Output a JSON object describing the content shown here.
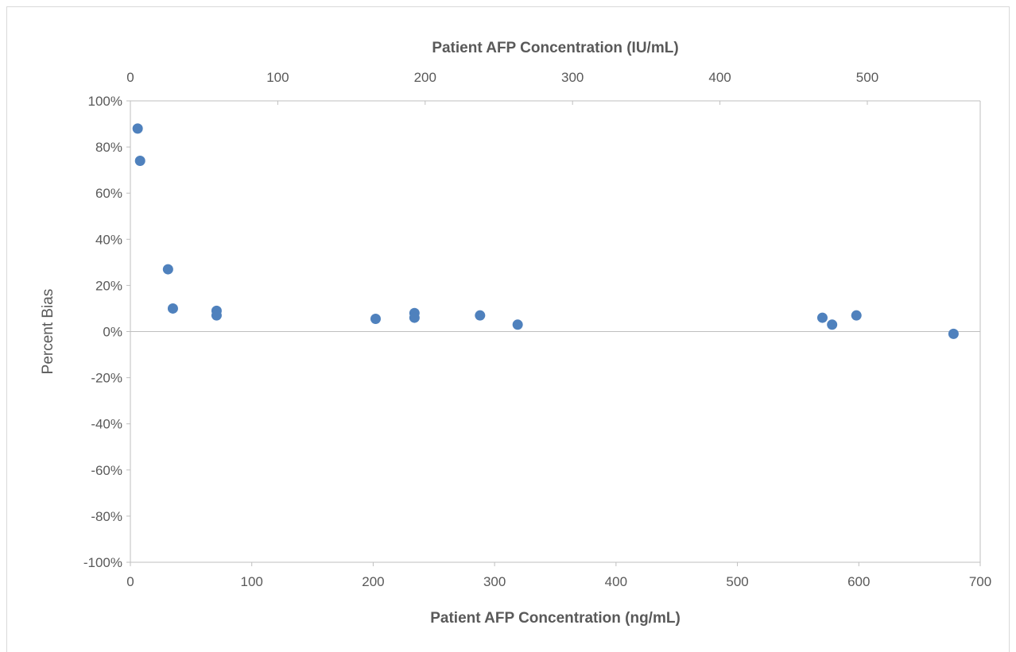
{
  "chart_data": {
    "type": "scatter",
    "title": "",
    "xlabel": "Patient AFP Concentration (ng/mL)",
    "x2label": "Patient AFP Concentration (IU/mL)",
    "ylabel": "Percent Bias",
    "xlim": [
      0,
      700
    ],
    "x2lim": [
      0,
      576.6
    ],
    "ylim": [
      -1.0,
      1.0
    ],
    "x_ticks": [
      0,
      100,
      200,
      300,
      400,
      500,
      600,
      700
    ],
    "x_tick_labels": [
      "0",
      "100",
      "200",
      "300",
      "400",
      "500",
      "600",
      "700"
    ],
    "x2_ticks": [
      0,
      100,
      200,
      300,
      400,
      500
    ],
    "x2_tick_labels": [
      "0",
      "100",
      "200",
      "300",
      "400",
      "500"
    ],
    "y_ticks": [
      -1.0,
      -0.8,
      -0.6,
      -0.4,
      -0.2,
      0,
      0.2,
      0.4,
      0.6,
      0.8,
      1.0
    ],
    "y_tick_labels": [
      "-100%",
      "-80%",
      "-60%",
      "-40%",
      "-20%",
      "0%",
      "20%",
      "40%",
      "60%",
      "80%",
      "100%"
    ],
    "grid": false,
    "marker_color": "#4f81bd",
    "axis_color": "#bfbfbf",
    "series": [
      {
        "x": [
          6,
          8,
          31,
          35,
          71,
          71,
          202,
          234,
          234,
          288,
          319,
          570,
          578,
          598,
          678
        ],
        "y": [
          0.88,
          0.74,
          0.27,
          0.1,
          0.09,
          0.07,
          0.055,
          0.08,
          0.06,
          0.07,
          0.03,
          0.06,
          0.03,
          0.07,
          -0.01
        ]
      }
    ]
  }
}
